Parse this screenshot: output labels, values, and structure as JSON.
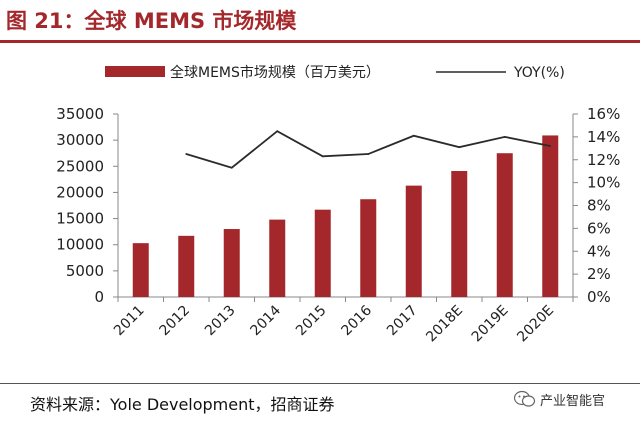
{
  "figure": {
    "title": "图 21：全球 MEMS 市场规模",
    "source": "资料来源：Yole Development，招商证券",
    "watermark": "产业智能官",
    "watermark_icon": "wechat-icon"
  },
  "colors": {
    "bar": "#a4282b",
    "line": "#2b2b2b",
    "title": "#a4282b",
    "axis": "#888888"
  },
  "chart_data": {
    "type": "bar",
    "title": "全球 MEMS 市场规模",
    "categories": [
      "2011",
      "2012",
      "2013",
      "2014",
      "2015",
      "2016",
      "2017",
      "2018E",
      "2019E",
      "2020E"
    ],
    "series": [
      {
        "name": "全球MEMS市场规模（百万美元）",
        "type": "bar",
        "axis": "left",
        "values": [
          10300,
          11700,
          13000,
          14800,
          16700,
          18700,
          21300,
          24100,
          27500,
          30900
        ]
      },
      {
        "name": "YOY(%)",
        "type": "line",
        "axis": "right",
        "values": [
          null,
          12.5,
          11.3,
          14.5,
          12.3,
          12.5,
          14.1,
          13.1,
          14.0,
          13.2
        ]
      }
    ],
    "y_left": {
      "ylim": [
        0,
        35000
      ],
      "ticks": [
        "0",
        "5000",
        "10000",
        "15000",
        "20000",
        "25000",
        "30000",
        "35000"
      ]
    },
    "y_right": {
      "ylim": [
        0,
        16
      ],
      "ticks": [
        "0%",
        "2%",
        "4%",
        "6%",
        "8%",
        "10%",
        "12%",
        "14%",
        "16%"
      ]
    },
    "xlabel": "",
    "ylabel": "",
    "legend_position": "top",
    "grid": false
  }
}
